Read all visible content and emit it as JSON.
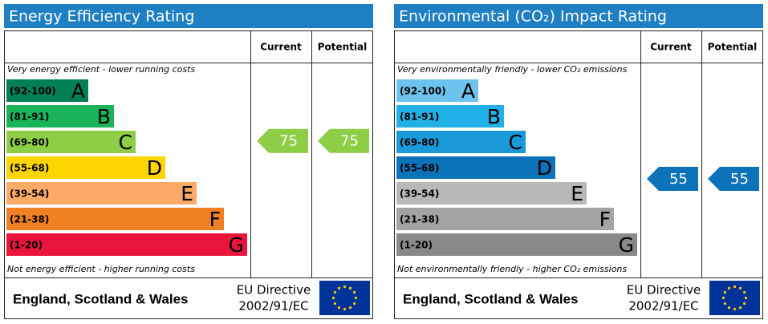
{
  "panels": [
    {
      "title": "Energy Efficiency Rating",
      "header": {
        "current": "Current",
        "potential": "Potential"
      },
      "top_note": "Very energy efficient - lower running costs",
      "bottom_note": "Not energy efficient - higher running costs",
      "bands": [
        {
          "range": "(92-100)",
          "letter": "A",
          "color": "#008054"
        },
        {
          "range": "(81-91)",
          "letter": "B",
          "color": "#19b459"
        },
        {
          "range": "(69-80)",
          "letter": "C",
          "color": "#8dce46"
        },
        {
          "range": "(55-68)",
          "letter": "D",
          "color": "#ffd500"
        },
        {
          "range": "(39-54)",
          "letter": "E",
          "color": "#fcaa65"
        },
        {
          "range": "(21-38)",
          "letter": "F",
          "color": "#ef8023"
        },
        {
          "range": "(1-20)",
          "letter": "G",
          "color": "#e9153b"
        }
      ],
      "current": 75,
      "potential": 75,
      "arrow_color": "#8dce46",
      "footer": {
        "region": "England, Scotland & Wales",
        "directive": "EU Directive",
        "code": "2002/91/EC"
      }
    },
    {
      "title": "Environmental (CO₂) Impact Rating",
      "header": {
        "current": "Current",
        "potential": "Potential"
      },
      "top_note": "Very environmentally friendly - lower CO₂ emissions",
      "bottom_note": "Not environmentally friendly - higher CO₂ emissions",
      "bands": [
        {
          "range": "(92-100)",
          "letter": "A",
          "color": "#6dc3ee"
        },
        {
          "range": "(81-91)",
          "letter": "B",
          "color": "#22b0e8"
        },
        {
          "range": "(69-80)",
          "letter": "C",
          "color": "#1a9ad8"
        },
        {
          "range": "(55-68)",
          "letter": "D",
          "color": "#0c72ba"
        },
        {
          "range": "(39-54)",
          "letter": "E",
          "color": "#b8b8b8"
        },
        {
          "range": "(21-38)",
          "letter": "F",
          "color": "#a3a3a3"
        },
        {
          "range": "(1-20)",
          "letter": "G",
          "color": "#898989"
        }
      ],
      "current": 55,
      "potential": 55,
      "arrow_color": "#0c72ba",
      "footer": {
        "region": "England, Scotland & Wales",
        "directive": "EU Directive",
        "code": "2002/91/EC"
      }
    }
  ]
}
